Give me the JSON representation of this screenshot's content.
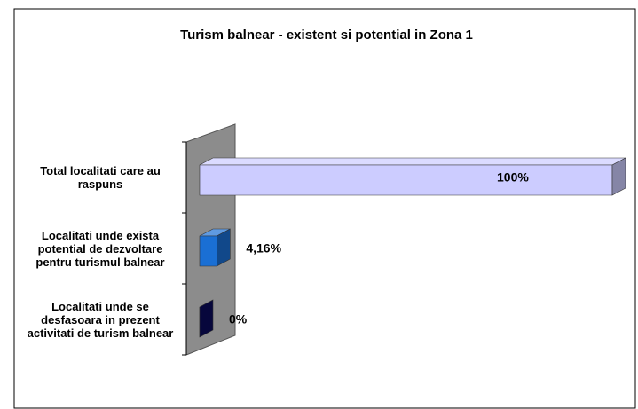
{
  "chart_data": {
    "type": "bar",
    "orientation": "horizontal",
    "title": "Turism balnear  - existent  si potential  in Zona 1",
    "categories": [
      "Total localitati care au raspuns",
      "Localitati unde exista potential de dezvoltare pentru turismul balnear",
      "Localitati unde se desfasoara in prezent activitati de turism balnear"
    ],
    "values": [
      100,
      4.16,
      0
    ],
    "value_labels": [
      "100%",
      "4,16%",
      "0%"
    ],
    "colors": [
      "#ccccff",
      "#1a6fd4",
      "#0a0a5c"
    ],
    "xlim": [
      0,
      100
    ]
  }
}
